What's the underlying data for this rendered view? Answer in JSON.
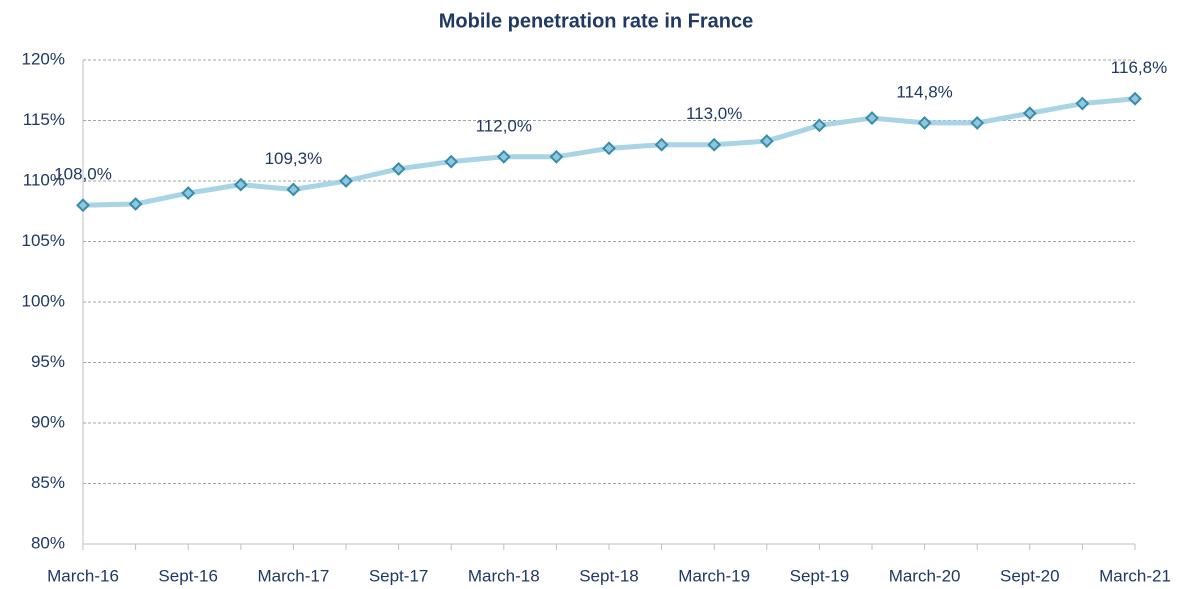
{
  "chart_data": {
    "type": "line",
    "title": "Mobile penetration rate in France",
    "categories": [
      "March-16",
      null,
      "Sept-16",
      null,
      "March-17",
      null,
      "Sept-17",
      null,
      "March-18",
      null,
      "Sept-18",
      null,
      "March-19",
      null,
      "Sept-19",
      null,
      "March-20",
      null,
      "Sept-20",
      null,
      "March-21"
    ],
    "series": [
      {
        "name": "Mobile penetration rate",
        "color": "#a8d4e6",
        "marker_fill": "#8ec8dc",
        "marker_stroke": "#3a8bab",
        "values": [
          108.0,
          108.1,
          109.0,
          109.7,
          109.3,
          110.0,
          111.0,
          111.6,
          112.0,
          112.0,
          112.7,
          113.0,
          113.0,
          113.3,
          114.6,
          115.2,
          114.8,
          114.8,
          115.6,
          116.4,
          116.8
        ],
        "value_labels": [
          "108,0%",
          null,
          null,
          null,
          "109,3%",
          null,
          null,
          null,
          "112,0%",
          null,
          null,
          null,
          "113,0%",
          null,
          null,
          null,
          "114,8%",
          null,
          null,
          null,
          "116,8%"
        ]
      }
    ],
    "ylim": [
      80,
      120
    ],
    "yticks": [
      {
        "value": 80,
        "label": "80%"
      },
      {
        "value": 85,
        "label": "85%"
      },
      {
        "value": 90,
        "label": "90%"
      },
      {
        "value": 95,
        "label": "95%"
      },
      {
        "value": 100,
        "label": "100%"
      },
      {
        "value": 105,
        "label": "105%"
      },
      {
        "value": 110,
        "label": "110%"
      },
      {
        "value": 115,
        "label": "115%"
      },
      {
        "value": 120,
        "label": "120%"
      }
    ],
    "grid": true
  }
}
